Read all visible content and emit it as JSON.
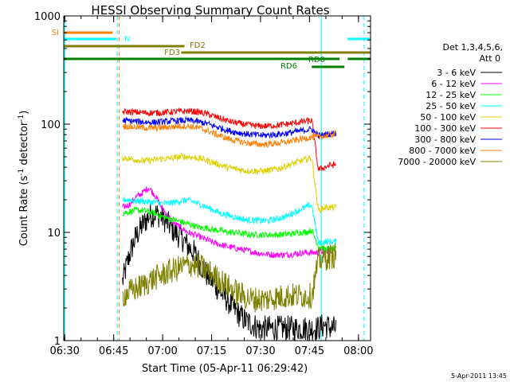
{
  "chart_data": {
    "type": "line",
    "title": "HESSI Observing Summary Count Rates",
    "xlabel": "Start Time (05-Apr-11 06:29:42)",
    "ylabel_main": "Count Rate (s",
    "ylabel_sup1": "-1",
    "ylabel_mid": " detector",
    "ylabel_sup2": "-1",
    "ylabel_end": ")",
    "yscale": "log",
    "ylim": [
      1,
      1000
    ],
    "xlim_minutes": [
      0,
      94
    ],
    "x_ticks": [
      {
        "label": "06:30",
        "t": 0.3
      },
      {
        "label": "06:45",
        "t": 15.3
      },
      {
        "label": "07:00",
        "t": 30.3
      },
      {
        "label": "07:15",
        "t": 45.3
      },
      {
        "label": "07:30",
        "t": 60.3
      },
      {
        "label": "07:45",
        "t": 75.3
      },
      {
        "label": "08:00",
        "t": 90.3
      }
    ],
    "y_ticks": [
      {
        "label": "1",
        "v": 1
      },
      {
        "label": "10",
        "v": 10
      },
      {
        "label": "100",
        "v": 100
      },
      {
        "label": "1000",
        "v": 1000
      }
    ],
    "legend": {
      "header": [
        "Det 1,3,4,5,6,",
        "Att 0"
      ],
      "placement": "right"
    },
    "series": [
      {
        "name": "3 - 6 keV",
        "color": "#000000",
        "t": [
          18,
          20,
          22,
          24,
          26,
          28,
          30,
          32,
          34,
          36,
          38,
          40,
          42,
          44,
          46,
          48,
          50,
          52,
          54,
          56,
          58,
          60,
          62,
          64,
          66,
          68,
          70,
          72,
          74,
          76,
          78,
          80,
          82,
          83.5
        ],
        "v": [
          3.5,
          6,
          9,
          11.5,
          14,
          15,
          14,
          12,
          10,
          9,
          7.5,
          6.5,
          5,
          4,
          3.4,
          2.8,
          2.4,
          2,
          1.7,
          1.5,
          1.4,
          1.3,
          1.3,
          1.3,
          1.3,
          1.3,
          1.3,
          1.3,
          1.3,
          1.3,
          1.3,
          1.4,
          1.3,
          1.3
        ]
      },
      {
        "name": "6 - 12 keV",
        "color": "#ff00ff",
        "t": [
          18,
          20,
          22,
          24,
          26,
          28,
          30,
          32,
          34,
          36,
          38,
          40,
          42,
          44,
          46,
          48,
          50,
          52,
          54,
          56,
          58,
          60,
          62,
          64,
          66,
          68,
          70,
          72,
          74,
          76,
          78,
          80,
          82,
          83.5
        ],
        "v": [
          17,
          18,
          21,
          23,
          26,
          22,
          17,
          14,
          12,
          11,
          10,
          9.5,
          9,
          8.5,
          8,
          7.7,
          7.4,
          7.2,
          7,
          6.8,
          6.6,
          6.4,
          6.3,
          6.2,
          6.2,
          6.2,
          6.3,
          6.4,
          6.5,
          6.5,
          6.5,
          6.8,
          6.8,
          6.8
        ]
      },
      {
        "name": "12 - 25 keV",
        "color": "#00ff00",
        "t": [
          18,
          20,
          22,
          24,
          26,
          28,
          30,
          32,
          34,
          36,
          38,
          40,
          42,
          44,
          46,
          48,
          50,
          52,
          54,
          56,
          58,
          60,
          62,
          64,
          66,
          68,
          70,
          72,
          74,
          76,
          78,
          80,
          82,
          83.5
        ],
        "v": [
          15,
          15.5,
          16,
          16,
          15.5,
          15,
          14,
          13.5,
          13,
          12.5,
          12,
          11.5,
          11,
          11,
          10.5,
          10.5,
          10,
          10,
          9.8,
          9.6,
          9.5,
          9.5,
          9.5,
          9.5,
          9.5,
          9.6,
          9.7,
          10,
          10,
          10.5,
          7.5,
          7,
          7,
          7
        ]
      },
      {
        "name": "25 - 50 keV",
        "color": "#00ffff",
        "t": [
          18,
          20,
          22,
          24,
          26,
          28,
          30,
          32,
          34,
          36,
          38,
          40,
          42,
          44,
          46,
          48,
          50,
          52,
          54,
          56,
          58,
          60,
          62,
          64,
          66,
          68,
          70,
          72,
          74,
          76,
          78,
          80,
          82,
          83.5
        ],
        "v": [
          20,
          20,
          19.5,
          19.5,
          19,
          19,
          18.5,
          18.5,
          19,
          19.5,
          20,
          19,
          18,
          17,
          16,
          15,
          14.5,
          14,
          13.5,
          13,
          13,
          12.8,
          12.8,
          13,
          13.5,
          14,
          15,
          16,
          17,
          18,
          8,
          8.2,
          8.2,
          8.2
        ]
      },
      {
        "name": "50 - 100 keV",
        "color": "#e0d000",
        "t": [
          18,
          20,
          22,
          24,
          26,
          28,
          30,
          32,
          34,
          36,
          38,
          40,
          42,
          44,
          46,
          48,
          50,
          52,
          54,
          56,
          58,
          60,
          62,
          64,
          66,
          68,
          70,
          72,
          74,
          76,
          78,
          80,
          82,
          83.5
        ],
        "v": [
          49,
          48,
          47,
          46,
          46,
          47,
          48,
          48,
          49,
          50,
          50,
          49,
          48,
          46,
          44,
          42,
          40,
          39,
          38,
          37,
          37,
          37,
          37,
          38,
          39,
          41,
          43,
          45,
          47,
          49,
          16,
          17,
          17,
          17
        ]
      },
      {
        "name": "100 - 300 keV",
        "color": "#ff0000",
        "t": [
          18,
          20,
          22,
          24,
          26,
          28,
          30,
          32,
          34,
          36,
          38,
          40,
          42,
          44,
          46,
          48,
          50,
          52,
          54,
          56,
          58,
          60,
          62,
          64,
          66,
          68,
          70,
          72,
          74,
          76,
          78,
          80,
          82,
          83.5
        ],
        "v": [
          130,
          130,
          129,
          128,
          127,
          127,
          128,
          129,
          130,
          131,
          132,
          131,
          128,
          124,
          118,
          113,
          108,
          104,
          101,
          99,
          97,
          96,
          96,
          97,
          98,
          100,
          102,
          104,
          106,
          108,
          38,
          40,
          42,
          42
        ]
      },
      {
        "name": "300 - 800 keV",
        "color": "#0000ff",
        "t": [
          18,
          20,
          22,
          24,
          26,
          28,
          30,
          32,
          34,
          36,
          38,
          40,
          42,
          44,
          46,
          48,
          50,
          52,
          54,
          56,
          58,
          60,
          62,
          64,
          66,
          68,
          70,
          72,
          74,
          76,
          78,
          80,
          82,
          83.5
        ],
        "v": [
          108,
          107,
          106,
          105,
          104,
          104,
          105,
          106,
          107,
          108,
          108,
          107,
          104,
          101,
          96,
          92,
          88,
          85,
          83,
          81,
          80,
          79,
          79,
          80,
          81,
          82,
          84,
          86,
          88,
          90,
          78,
          80,
          82,
          82
        ]
      },
      {
        "name": "800 - 7000 keV",
        "color": "#ff8000",
        "t": [
          18,
          20,
          22,
          24,
          26,
          28,
          30,
          32,
          34,
          36,
          38,
          40,
          42,
          44,
          46,
          48,
          50,
          52,
          54,
          56,
          58,
          60,
          62,
          64,
          66,
          68,
          70,
          72,
          74,
          76,
          78,
          80,
          82,
          83.5
        ],
        "v": [
          96,
          95,
          94,
          93,
          92,
          92,
          93,
          94,
          95,
          96,
          96,
          94,
          91,
          87,
          82,
          78,
          74,
          71,
          69,
          67,
          66,
          65,
          65,
          66,
          67,
          68,
          70,
          72,
          74,
          76,
          76,
          78,
          80,
          82
        ]
      },
      {
        "name": "7000 - 20000 keV",
        "color": "#808000",
        "t": [
          18,
          20,
          22,
          24,
          26,
          28,
          30,
          32,
          34,
          36,
          38,
          40,
          42,
          44,
          46,
          48,
          50,
          52,
          54,
          56,
          58,
          60,
          62,
          64,
          66,
          68,
          70,
          72,
          74,
          76,
          78,
          80,
          82,
          83.5
        ],
        "v": [
          2.6,
          2.8,
          3,
          3.2,
          3.5,
          3.8,
          4,
          4.3,
          4.5,
          4.8,
          5,
          5,
          4.8,
          4.4,
          4,
          3.6,
          3.2,
          2.9,
          2.7,
          2.5,
          2.4,
          2.4,
          2.4,
          2.5,
          2.5,
          2.6,
          2.6,
          2.6,
          2.6,
          2.6,
          5.5,
          5.8,
          6,
          6.2
        ]
      }
    ],
    "flag_bars": [
      {
        "label": "SI",
        "color": "#ff8000",
        "segments": [
          [
            0,
            15
          ]
        ]
      },
      {
        "label": "N",
        "color": "#00ffff",
        "segments": [
          [
            0,
            16
          ],
          [
            87,
            94
          ]
        ]
      },
      {
        "label": "FD2",
        "color": "#808000",
        "segments": [
          [
            0,
            37
          ]
        ]
      },
      {
        "label": "FD3",
        "color": "#808000",
        "segments": [
          [
            36,
            94
          ]
        ]
      },
      {
        "label": "RD0",
        "color": "#008000",
        "segments": [
          [
            0,
            84.5
          ],
          [
            87,
            94
          ]
        ]
      },
      {
        "label": "RD6",
        "color": "#008000",
        "segments": [
          [
            76,
            86
          ]
        ]
      }
    ],
    "vlines": [
      {
        "t": 0.3,
        "color": "#00ffff",
        "style": "solid"
      },
      {
        "t": 16.4,
        "color": "#00ffff",
        "style": "dashed"
      },
      {
        "t": 17,
        "color": "#ff8000",
        "style": "dashed"
      },
      {
        "t": 78.9,
        "color": "#00ffff",
        "style": "solid"
      },
      {
        "t": 92,
        "color": "#00ffff",
        "style": "dashed"
      }
    ]
  },
  "footer": {
    "date_stamp": "5-Apr-2011 13:45"
  }
}
